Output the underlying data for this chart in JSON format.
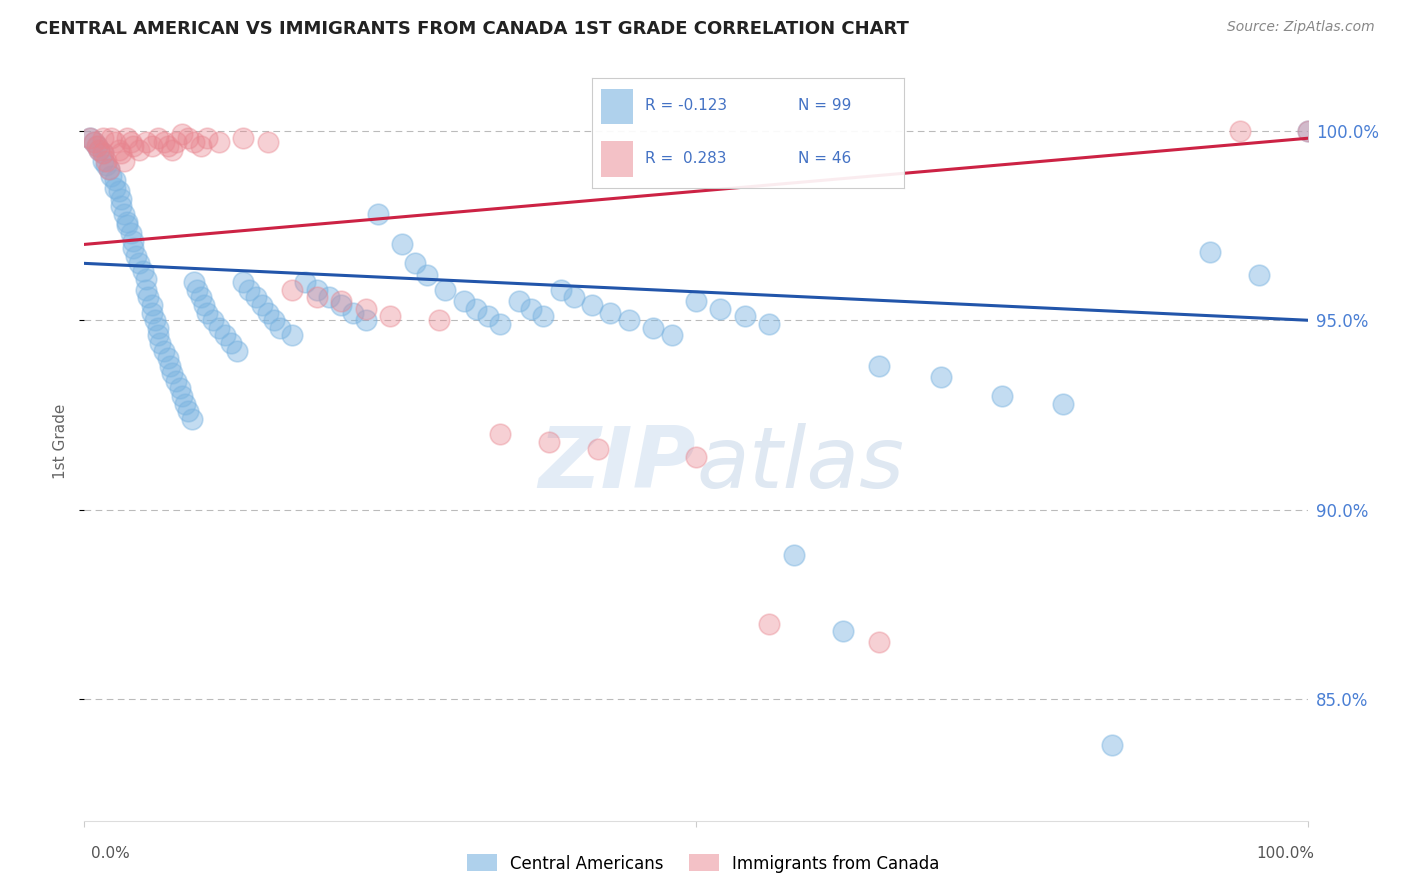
{
  "title": "CENTRAL AMERICAN VS IMMIGRANTS FROM CANADA 1ST GRADE CORRELATION CHART",
  "source": "Source: ZipAtlas.com",
  "ylabel": "1st Grade",
  "y_ticks": [
    0.85,
    0.9,
    0.95,
    1.0
  ],
  "y_tick_labels": [
    "85.0%",
    "90.0%",
    "95.0%",
    "100.0%"
  ],
  "xlim": [
    0.0,
    1.0
  ],
  "ylim": [
    0.818,
    1.018
  ],
  "blue_R": -0.123,
  "blue_N": 99,
  "pink_R": 0.283,
  "pink_N": 46,
  "blue_color": "#7ab3e0",
  "pink_color": "#e8848e",
  "blue_line_color": "#2255aa",
  "pink_line_color": "#cc2244",
  "legend_label_blue": "Central Americans",
  "legend_label_pink": "Immigrants from Canada",
  "watermark_zip": "ZIP",
  "watermark_atlas": "atlas",
  "blue_line_x0": 0.0,
  "blue_line_y0": 0.965,
  "blue_line_x1": 1.0,
  "blue_line_y1": 0.95,
  "pink_line_x0": 0.0,
  "pink_line_y0": 0.97,
  "pink_line_x1": 1.0,
  "pink_line_y1": 0.998,
  "blue_scatter_x": [
    0.005,
    0.008,
    0.01,
    0.012,
    0.015,
    0.015,
    0.018,
    0.02,
    0.022,
    0.025,
    0.025,
    0.028,
    0.03,
    0.03,
    0.032,
    0.035,
    0.035,
    0.038,
    0.04,
    0.04,
    0.042,
    0.045,
    0.048,
    0.05,
    0.05,
    0.052,
    0.055,
    0.055,
    0.058,
    0.06,
    0.06,
    0.062,
    0.065,
    0.068,
    0.07,
    0.072,
    0.075,
    0.078,
    0.08,
    0.082,
    0.085,
    0.088,
    0.09,
    0.092,
    0.095,
    0.098,
    0.1,
    0.105,
    0.11,
    0.115,
    0.12,
    0.125,
    0.13,
    0.135,
    0.14,
    0.145,
    0.15,
    0.155,
    0.16,
    0.17,
    0.18,
    0.19,
    0.2,
    0.21,
    0.22,
    0.23,
    0.24,
    0.26,
    0.27,
    0.28,
    0.295,
    0.31,
    0.32,
    0.33,
    0.34,
    0.355,
    0.365,
    0.375,
    0.39,
    0.4,
    0.415,
    0.43,
    0.445,
    0.465,
    0.48,
    0.5,
    0.52,
    0.54,
    0.56,
    0.58,
    0.62,
    0.65,
    0.7,
    0.75,
    0.8,
    0.84,
    0.92,
    0.96,
    1.0
  ],
  "blue_scatter_y": [
    0.998,
    0.997,
    0.996,
    0.995,
    0.994,
    0.992,
    0.991,
    0.99,
    0.988,
    0.987,
    0.985,
    0.984,
    0.982,
    0.98,
    0.978,
    0.976,
    0.975,
    0.973,
    0.971,
    0.969,
    0.967,
    0.965,
    0.963,
    0.961,
    0.958,
    0.956,
    0.954,
    0.952,
    0.95,
    0.948,
    0.946,
    0.944,
    0.942,
    0.94,
    0.938,
    0.936,
    0.934,
    0.932,
    0.93,
    0.928,
    0.926,
    0.924,
    0.96,
    0.958,
    0.956,
    0.954,
    0.952,
    0.95,
    0.948,
    0.946,
    0.944,
    0.942,
    0.96,
    0.958,
    0.956,
    0.954,
    0.952,
    0.95,
    0.948,
    0.946,
    0.96,
    0.958,
    0.956,
    0.954,
    0.952,
    0.95,
    0.978,
    0.97,
    0.965,
    0.962,
    0.958,
    0.955,
    0.953,
    0.951,
    0.949,
    0.955,
    0.953,
    0.951,
    0.958,
    0.956,
    0.954,
    0.952,
    0.95,
    0.948,
    0.946,
    0.955,
    0.953,
    0.951,
    0.949,
    0.888,
    0.868,
    0.938,
    0.935,
    0.93,
    0.928,
    0.838,
    0.968,
    0.962,
    1.0
  ],
  "pink_scatter_x": [
    0.005,
    0.008,
    0.01,
    0.012,
    0.015,
    0.015,
    0.018,
    0.02,
    0.022,
    0.025,
    0.028,
    0.03,
    0.032,
    0.035,
    0.038,
    0.04,
    0.045,
    0.05,
    0.055,
    0.06,
    0.065,
    0.068,
    0.072,
    0.075,
    0.08,
    0.085,
    0.09,
    0.095,
    0.1,
    0.11,
    0.13,
    0.15,
    0.17,
    0.19,
    0.21,
    0.23,
    0.25,
    0.29,
    0.34,
    0.38,
    0.42,
    0.5,
    0.56,
    0.65,
    0.945,
    1.0
  ],
  "pink_scatter_y": [
    0.998,
    0.997,
    0.996,
    0.995,
    0.998,
    0.994,
    0.992,
    0.99,
    0.998,
    0.997,
    0.995,
    0.994,
    0.992,
    0.998,
    0.997,
    0.996,
    0.995,
    0.997,
    0.996,
    0.998,
    0.997,
    0.996,
    0.995,
    0.997,
    0.999,
    0.998,
    0.997,
    0.996,
    0.998,
    0.997,
    0.998,
    0.997,
    0.958,
    0.956,
    0.955,
    0.953,
    0.951,
    0.95,
    0.92,
    0.918,
    0.916,
    0.914,
    0.87,
    0.865,
    1.0,
    1.0
  ]
}
